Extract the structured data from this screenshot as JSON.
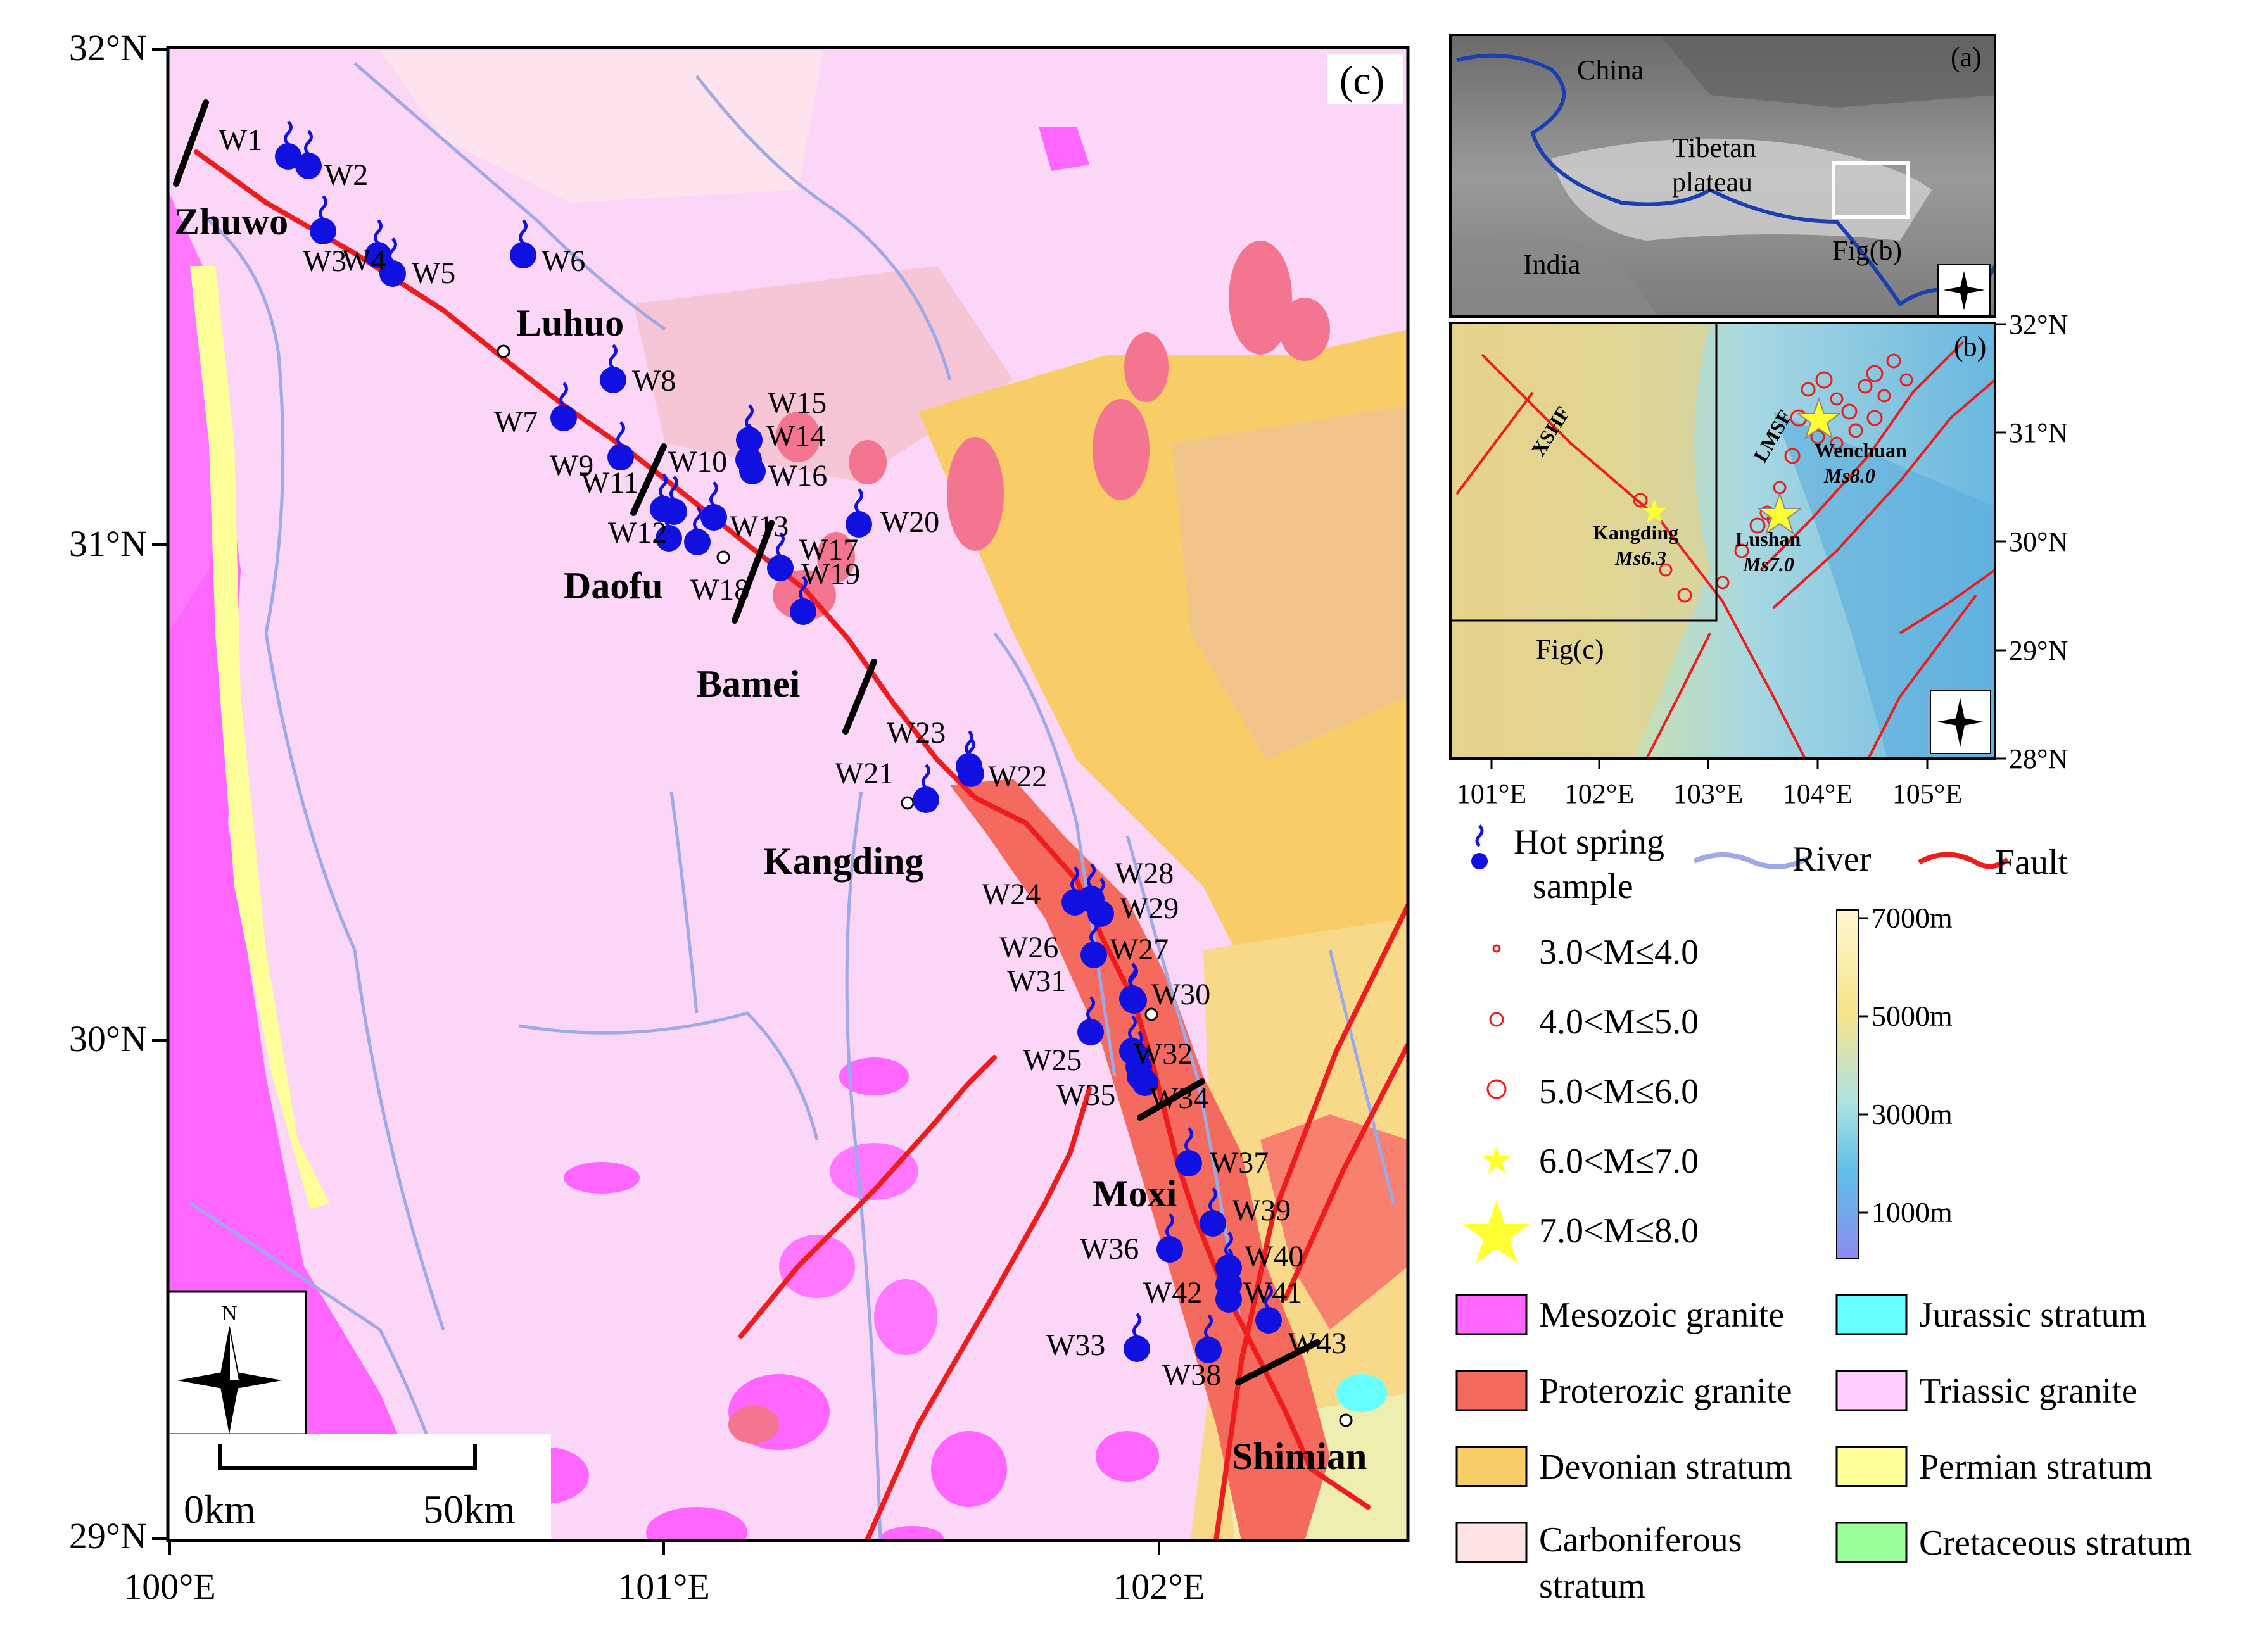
{
  "main_map": {
    "panel_label": "(c)",
    "lat_ticks": [
      "32°N",
      "31°N",
      "30°N",
      "29°N"
    ],
    "lon_ticks": [
      "100°E",
      "101°E",
      "102°E"
    ],
    "towns": [
      "Zhuwo",
      "Luhuo",
      "Daofu",
      "Bamei",
      "Kangding",
      "Moxi",
      "Shimian"
    ],
    "samples": [
      "W1",
      "W2",
      "W3",
      "W4",
      "W5",
      "W6",
      "W7",
      "W8",
      "W9",
      "W10",
      "W11",
      "W12",
      "W13",
      "W14",
      "W15",
      "W16",
      "W17",
      "W18",
      "W19",
      "W20",
      "W21",
      "W22",
      "W23",
      "W24",
      "W25",
      "W26",
      "W27",
      "W28",
      "W29",
      "W30",
      "W31",
      "W32",
      "W33",
      "W34",
      "W35",
      "W36",
      "W37",
      "W38",
      "W39",
      "W40",
      "W41",
      "W42",
      "W43"
    ],
    "scale_bar": {
      "start": "0km",
      "end": "50km"
    },
    "north_label": "N"
  },
  "inset_a": {
    "panel_label": "(a)",
    "labels": [
      "China",
      "Tibetan",
      "plateau",
      "India",
      "Fig(b)"
    ],
    "north_label": "N"
  },
  "inset_b": {
    "panel_label": "(b)",
    "faults": [
      "XSHF",
      "LMSF"
    ],
    "quakes": [
      "Wenchuan",
      "Ms8.0",
      "Lushan",
      "Ms7.0",
      "Kangding",
      "Ms6.3"
    ],
    "frame_label": "Fig(c)",
    "lat_ticks": [
      "32°N",
      "31°N",
      "30°N",
      "29°N",
      "28°N"
    ],
    "lon_ticks": [
      "101°E",
      "102°E",
      "103°E",
      "104°E",
      "105°E"
    ],
    "north_label": "N"
  },
  "legend": {
    "hot_spring": [
      "Hot spring",
      "sample"
    ],
    "river": "River",
    "fault": "Fault",
    "magnitudes": [
      "3.0<M≤4.0",
      "4.0<M≤5.0",
      "5.0<M≤6.0",
      "6.0<M≤7.0",
      "7.0<M≤8.0"
    ],
    "elevation": [
      "7000m",
      "5000m",
      "3000m",
      "1000m"
    ],
    "geology": [
      {
        "label": "Mesozoic granite",
        "color": "#ff66ff"
      },
      {
        "label": "Jurassic stratum",
        "color": "#66ffff"
      },
      {
        "label": "Proterozic granite",
        "color": "#f56a5e"
      },
      {
        "label": "Triassic granite",
        "color": "#ffccff"
      },
      {
        "label": "Devonian stratum",
        "color": "#f8cc66"
      },
      {
        "label": "Permian stratum",
        "color": "#ffff99"
      },
      {
        "label": "Carboniferous stratum",
        "color": "#fde3e3"
      },
      {
        "label": "Cretaceous stratum",
        "color": "#99ff99"
      }
    ]
  },
  "colors": {
    "fault": "#ee1c1c",
    "river": "#9ea9e8",
    "spring": "#1010e0",
    "background": "#fcd6f6"
  }
}
